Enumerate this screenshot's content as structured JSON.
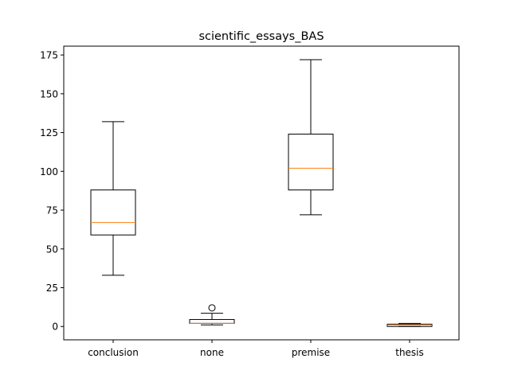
{
  "chart_data": {
    "type": "box",
    "title": "scientific_essays_BAS",
    "xlabel": "",
    "ylabel": "",
    "ylim": [
      -8.6,
      180.7
    ],
    "yticks": [
      0,
      25,
      50,
      75,
      100,
      125,
      150,
      175
    ],
    "categories": [
      "conclusion",
      "none",
      "premise",
      "thesis"
    ],
    "boxes": [
      {
        "category": "conclusion",
        "whisker_low": 33,
        "q1": 59,
        "median": 67,
        "q3": 88,
        "whisker_high": 132,
        "outliers": []
      },
      {
        "category": "none",
        "whisker_low": 1,
        "q1": 2,
        "median": 2,
        "q3": 4.5,
        "whisker_high": 8.5,
        "outliers": [
          12
        ]
      },
      {
        "category": "premise",
        "whisker_low": 72,
        "q1": 88,
        "median": 102,
        "q3": 124,
        "whisker_high": 172,
        "outliers": []
      },
      {
        "category": "thesis",
        "whisker_low": 0,
        "q1": 0,
        "median": 1,
        "q3": 1.5,
        "whisker_high": 2,
        "outliers": []
      }
    ],
    "colors": {
      "box": "#000000",
      "median": "#ff7f0e",
      "background": "#ffffff"
    },
    "grid": false,
    "legend": "none"
  }
}
